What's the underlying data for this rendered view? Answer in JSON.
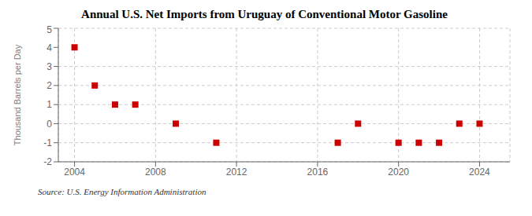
{
  "chart_data": {
    "type": "scatter",
    "title": "Annual U.S. Net Imports from Uruguay of Conventional Motor Gasoline",
    "ylabel": "Thousand Barrels per Day",
    "source": "Source: U.S. Energy Information Administration",
    "x": [
      2004,
      2005,
      2006,
      2007,
      2009,
      2011,
      2017,
      2018,
      2020,
      2021,
      2022,
      2023,
      2024
    ],
    "values": [
      4,
      2,
      1,
      1,
      0,
      -1,
      -1,
      0,
      -1,
      -1,
      -1,
      0,
      0
    ],
    "color": "#cc0000",
    "marker": "square",
    "xlim": [
      2003.2,
      2025.5
    ],
    "ylim": [
      -2,
      5
    ],
    "xticks": [
      2004,
      2008,
      2012,
      2016,
      2020,
      2024
    ],
    "yticks": [
      -2,
      -1,
      0,
      1,
      2,
      3,
      4,
      5
    ],
    "grid": true
  }
}
